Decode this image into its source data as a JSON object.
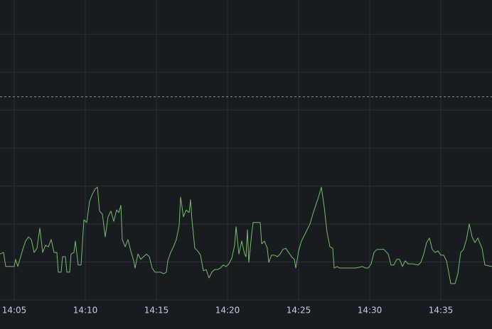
{
  "chart_data": {
    "type": "line",
    "x": [
      4,
      4.25,
      4.4,
      5,
      5.1,
      5.25,
      5.4,
      5.6,
      5.8,
      6,
      6.2,
      6.4,
      6.6,
      6.8,
      7,
      7.2,
      7.4,
      7.6,
      7.8,
      8,
      8.1,
      8.3,
      8.4,
      8.6,
      8.7,
      8.9,
      9,
      9.2,
      9.3,
      9.5,
      9.7,
      9.9,
      10.1,
      10.3,
      10.5,
      10.7,
      10.85,
      11,
      11.2,
      11.4,
      11.6,
      11.8,
      12,
      12.2,
      12.35,
      12.5,
      12.6,
      12.8,
      13,
      13.2,
      13.4,
      13.5,
      13.7,
      13.9,
      14.1,
      14.3,
      14.5,
      14.7,
      14.9,
      15.1,
      15.3,
      15.5,
      15.7,
      15.8,
      16,
      16.2,
      16.4,
      16.6,
      16.7,
      16.9,
      17.1,
      17.3,
      17.4,
      17.5,
      17.7,
      17.9,
      18.1,
      18.3,
      18.5,
      18.7,
      18.9,
      19.1,
      19.3,
      19.5,
      19.7,
      19.9,
      20.1,
      20.3,
      20.5,
      20.6,
      20.8,
      21,
      21.2,
      21.3,
      21.4,
      21.5,
      21.7,
      21.8,
      22,
      22.3,
      22.4,
      22.6,
      22.8,
      22.9,
      23.1,
      23.3,
      23.5,
      23.7,
      23.9,
      24.1,
      24.3,
      24.5,
      24.7,
      24.8,
      25,
      25.2,
      25.4,
      25.6,
      25.8,
      26,
      26.2,
      26.4,
      26.6,
      26.8,
      27,
      27.2,
      27.4,
      27.5,
      27.7,
      27.9,
      28.5,
      29,
      29.5,
      29.7,
      29.9,
      30.1,
      30.3,
      30.5,
      31,
      31.3,
      31.5,
      31.7,
      31.9,
      32.1,
      32.3,
      32.5,
      32.7,
      33,
      33.4,
      33.6,
      33.8,
      34,
      34.2,
      34.4,
      34.6,
      34.8,
      35,
      35.2,
      35.4,
      35.5,
      35.7,
      36,
      36.2,
      36.4,
      36.6,
      36.8,
      37,
      37.2,
      37.4,
      37.6,
      37.9,
      38.1,
      38.6
    ],
    "series": [
      {
        "color": "#73bf69",
        "values": [
          1.21,
          1.25,
          0.88,
          0.88,
          1.07,
          0.88,
          1.07,
          1.33,
          1.55,
          1.66,
          1.59,
          1.25,
          1.36,
          1.89,
          1.25,
          1.44,
          1.4,
          1.59,
          1.25,
          1.25,
          0.73,
          0.73,
          1.14,
          1.14,
          0.73,
          0.73,
          1.21,
          1.25,
          1.55,
          0.92,
          0.92,
          2.11,
          2.04,
          2.6,
          2.79,
          2.93,
          2.97,
          2.34,
          2.26,
          1.66,
          2.19,
          2.34,
          2.07,
          2.37,
          2.3,
          2.49,
          1.59,
          1.4,
          1.59,
          1.29,
          1.03,
          0.84,
          1.21,
          1.07,
          1.14,
          1.21,
          1.14,
          0.84,
          0.73,
          0.73,
          0.73,
          0.69,
          0.73,
          1.03,
          1.25,
          1.4,
          1.59,
          1.96,
          2.71,
          2.19,
          2.37,
          2.3,
          2.64,
          2.11,
          1.36,
          1.29,
          1.18,
          0.77,
          0.8,
          0.58,
          0.73,
          0.8,
          0.8,
          0.84,
          0.92,
          0.88,
          0.95,
          1.1,
          1.44,
          1.93,
          1.21,
          1.55,
          1.21,
          1.14,
          1.85,
          0.99,
          1.74,
          2.04,
          2.04,
          2.04,
          1.48,
          1.55,
          1.36,
          0.99,
          1.18,
          1.18,
          1.14,
          1.21,
          1.33,
          1.36,
          1.25,
          1.14,
          1.07,
          0.84,
          1.29,
          1.55,
          1.7,
          1.85,
          2.0,
          2.26,
          2.49,
          2.71,
          2.97,
          2.45,
          1.78,
          1.4,
          1.36,
          0.84,
          0.88,
          0.84,
          0.84,
          0.84,
          0.88,
          0.84,
          0.84,
          0.95,
          1.25,
          1.33,
          1.33,
          1.21,
          0.92,
          0.92,
          1.07,
          1.07,
          0.88,
          1.03,
          0.95,
          0.95,
          0.92,
          0.99,
          1.21,
          1.51,
          1.63,
          1.33,
          1.25,
          1.29,
          1.18,
          1.18,
          1.03,
          0.84,
          0.43,
          0.43,
          0.69,
          1.25,
          1.33,
          1.59,
          2.0,
          1.66,
          1.51,
          1.63,
          1.36,
          0.92,
          0.88
        ]
      }
    ],
    "xlim": [
      4,
      38.6
    ],
    "xticks": [
      {
        "value": 5,
        "label": "14:05"
      },
      {
        "value": 10,
        "label": "14:10"
      },
      {
        "value": 15,
        "label": "14:15"
      },
      {
        "value": 20,
        "label": "14:20"
      },
      {
        "value": 25,
        "label": "14:25"
      },
      {
        "value": 30,
        "label": "14:30"
      },
      {
        "value": 35,
        "label": "14:35"
      }
    ],
    "ylim": [
      0,
      7.9
    ],
    "yticks": [
      0,
      1,
      2,
      3,
      4,
      5,
      6,
      7
    ],
    "threshold": 5.35,
    "grid": true
  }
}
